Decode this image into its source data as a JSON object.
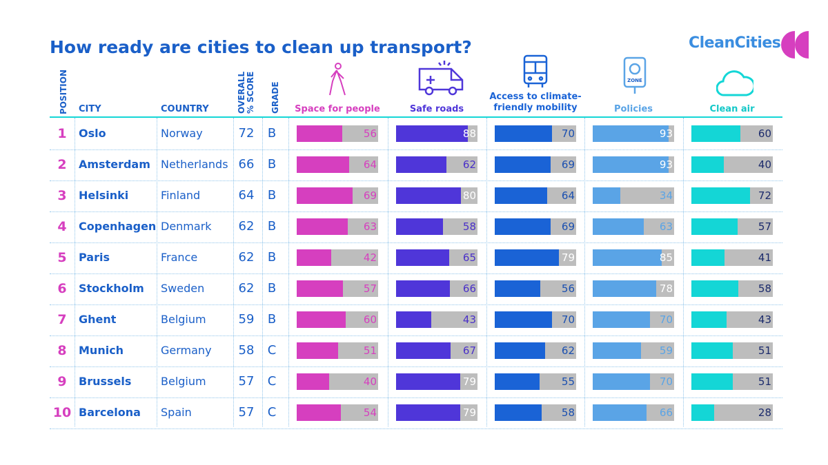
{
  "title": "How ready are cities to clean up transport?",
  "logo": "CleanCities",
  "table": {
    "headers": {
      "position": "POSITION",
      "city": "CITY",
      "country": "COUNTRY",
      "score": "OVERALL % SCORE",
      "grade": "GRADE"
    },
    "metrics": [
      {
        "name": "Space for people",
        "color": "#d63fbf",
        "label_color": "#d63fbf"
      },
      {
        "name": "Safe roads",
        "color": "#4f36d9",
        "label_color": "#4a30c8"
      },
      {
        "name": "Access to climate-friendly mobility",
        "color": "#1a63d6",
        "label_color": "#1a4fb0"
      },
      {
        "name": "Policies",
        "color": "#5aa4e6",
        "label_color": "#5aa4e6"
      },
      {
        "name": "Clean air",
        "color": "#14d6d6",
        "label_color": "#1b2a6b"
      }
    ],
    "xlim": [
      0,
      100
    ],
    "rows": [
      {
        "position": 1,
        "city": "Oslo",
        "country": "Norway",
        "score": 72,
        "grade": "B",
        "values": [
          56,
          88,
          70,
          93,
          60
        ]
      },
      {
        "position": 2,
        "city": "Amsterdam",
        "country": "Netherlands",
        "score": 66,
        "grade": "B",
        "values": [
          64,
          62,
          69,
          93,
          40
        ]
      },
      {
        "position": 3,
        "city": "Helsinki",
        "country": "Finland",
        "score": 64,
        "grade": "B",
        "values": [
          69,
          80,
          64,
          34,
          72
        ]
      },
      {
        "position": 4,
        "city": "Copenhagen",
        "country": "Denmark",
        "score": 62,
        "grade": "B",
        "values": [
          63,
          58,
          69,
          63,
          57
        ]
      },
      {
        "position": 5,
        "city": "Paris",
        "country": "France",
        "score": 62,
        "grade": "B",
        "values": [
          42,
          65,
          79,
          85,
          41
        ]
      },
      {
        "position": 6,
        "city": "Stockholm",
        "country": "Sweden",
        "score": 62,
        "grade": "B",
        "values": [
          57,
          66,
          56,
          78,
          58
        ]
      },
      {
        "position": 7,
        "city": "Ghent",
        "country": "Belgium",
        "score": 59,
        "grade": "B",
        "values": [
          60,
          43,
          70,
          70,
          43
        ]
      },
      {
        "position": 8,
        "city": "Munich",
        "country": "Germany",
        "score": 58,
        "grade": "C",
        "values": [
          51,
          67,
          62,
          59,
          51
        ]
      },
      {
        "position": 9,
        "city": "Brussels",
        "country": "Belgium",
        "score": 57,
        "grade": "C",
        "values": [
          40,
          79,
          55,
          70,
          51
        ]
      },
      {
        "position": 10,
        "city": "Barcelona",
        "country": "Spain",
        "score": 57,
        "grade": "C",
        "values": [
          54,
          79,
          58,
          66,
          28
        ]
      }
    ]
  }
}
